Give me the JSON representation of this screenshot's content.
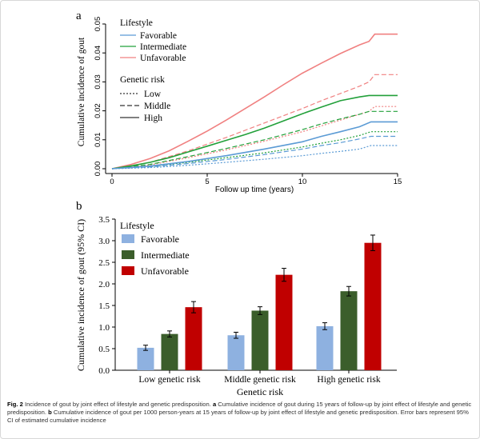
{
  "colors": {
    "favorable": "#5b9bd5",
    "intermediate": "#22a03a",
    "unfavorable": "#f08080",
    "bar_favorable": "#8eb1e0",
    "bar_intermediate": "#3b5e2b",
    "bar_unfavorable": "#c00000"
  },
  "figure": {
    "panel_a": {
      "label": "a",
      "legend": {
        "lifestyle_title": "Lifestyle",
        "lifestyle_items": [
          "Favorable",
          "Intermediate",
          "Unfavorable"
        ],
        "genetic_title": "Genetic risk",
        "genetic_items": [
          "Low",
          "Middle",
          "High"
        ]
      }
    },
    "panel_b": {
      "label": "b",
      "legend": {
        "title": "Lifestyle",
        "items": [
          "Favorable",
          "Intermediate",
          "Unfavorable"
        ]
      }
    },
    "caption": {
      "fig_label": "Fig. 2",
      "text1": " Incidence of gout by joint effect of lifestyle and genetic predisposition. ",
      "a_label": "a",
      "text2": " Cumulative incidence of gout during 15 years of follow-up by joint effect of lifestyle and genetic predisposition. ",
      "b_label": "b",
      "text3": " Cumulative incidence of gout per 1000 person-years at 15 years of follow-up by joint effect of lifestyle and genetic predisposition. Error bars represent 95% CI of estimated cumulative incidence"
    }
  },
  "chart_data": [
    {
      "type": "line",
      "xlabel": "Follow up time (years)",
      "ylabel": "Cumulative incidence of gout",
      "xlim": [
        0,
        15
      ],
      "ylim": [
        0,
        0.05
      ],
      "xticks": [
        "0",
        "5",
        "10",
        "15"
      ],
      "yticks": [
        "0.00",
        "0.01",
        "0.02",
        "0.03",
        "0.04",
        "0.05"
      ],
      "series": [
        {
          "name": "Unfavorable / High",
          "lifestyle": "Unfavorable",
          "genetic": "High",
          "x": [
            0,
            1,
            2,
            3,
            4,
            5,
            6,
            7,
            8,
            9,
            10,
            11,
            12,
            13,
            13.5,
            13.8,
            15
          ],
          "y": [
            0,
            0.0015,
            0.0035,
            0.0062,
            0.0095,
            0.013,
            0.0168,
            0.0208,
            0.0248,
            0.029,
            0.033,
            0.0365,
            0.0398,
            0.0428,
            0.044,
            0.0465,
            0.0465
          ]
        },
        {
          "name": "Unfavorable / Middle",
          "lifestyle": "Unfavorable",
          "genetic": "Middle",
          "x": [
            0,
            2,
            4,
            6,
            8,
            10,
            11,
            12,
            13,
            13.5,
            13.8,
            15
          ],
          "y": [
            0,
            0.0022,
            0.0062,
            0.0108,
            0.0158,
            0.0208,
            0.0235,
            0.026,
            0.0285,
            0.03,
            0.0325,
            0.0325
          ]
        },
        {
          "name": "Unfavorable / Low",
          "lifestyle": "Unfavorable",
          "genetic": "Low",
          "x": [
            0,
            2,
            4,
            6,
            8,
            10,
            11,
            12,
            13,
            13.5,
            13.8,
            15
          ],
          "y": [
            0,
            0.0013,
            0.0038,
            0.0065,
            0.0095,
            0.0128,
            0.0148,
            0.0168,
            0.0188,
            0.0198,
            0.0215,
            0.0215
          ]
        },
        {
          "name": "Intermediate / High",
          "lifestyle": "Intermediate",
          "genetic": "High",
          "x": [
            0,
            1,
            2,
            3,
            4,
            5,
            6,
            7,
            8,
            9,
            10,
            11,
            12,
            13,
            13.5,
            15
          ],
          "y": [
            0,
            0.001,
            0.0022,
            0.0038,
            0.0058,
            0.0078,
            0.0098,
            0.0118,
            0.014,
            0.0165,
            0.019,
            0.0213,
            0.0235,
            0.0248,
            0.0253,
            0.0253
          ]
        },
        {
          "name": "Intermediate / Middle",
          "lifestyle": "Intermediate",
          "genetic": "Middle",
          "x": [
            0,
            2,
            4,
            6,
            8,
            10,
            11,
            12,
            13,
            13.5,
            15
          ],
          "y": [
            0,
            0.0015,
            0.0042,
            0.007,
            0.01,
            0.0135,
            0.0155,
            0.0172,
            0.0188,
            0.0198,
            0.0198
          ]
        },
        {
          "name": "Intermediate / Low",
          "lifestyle": "Intermediate",
          "genetic": "Low",
          "x": [
            0,
            2,
            4,
            6,
            8,
            10,
            11,
            12,
            13,
            13.6,
            15
          ],
          "y": [
            0,
            0.0008,
            0.0022,
            0.0038,
            0.0055,
            0.0075,
            0.0088,
            0.01,
            0.0115,
            0.0128,
            0.0128
          ]
        },
        {
          "name": "Favorable / High",
          "lifestyle": "Favorable",
          "genetic": "High",
          "x": [
            0,
            2,
            4,
            6,
            8,
            10,
            11,
            12,
            13,
            13.6,
            15
          ],
          "y": [
            0,
            0.0009,
            0.0025,
            0.0045,
            0.0068,
            0.0093,
            0.0112,
            0.0128,
            0.0145,
            0.0162,
            0.0162
          ]
        },
        {
          "name": "Favorable / Middle",
          "lifestyle": "Favorable",
          "genetic": "Middle",
          "x": [
            0,
            2,
            4,
            6,
            8,
            10,
            11,
            12,
            13,
            13.6,
            15
          ],
          "y": [
            0,
            0.0006,
            0.0018,
            0.0032,
            0.0049,
            0.0068,
            0.008,
            0.009,
            0.0103,
            0.0112,
            0.0112
          ]
        },
        {
          "name": "Favorable / Low",
          "lifestyle": "Favorable",
          "genetic": "Low",
          "x": [
            0,
            2,
            4,
            6,
            8,
            10,
            11,
            12,
            13,
            13.6,
            15
          ],
          "y": [
            0,
            0.0004,
            0.0012,
            0.0022,
            0.0033,
            0.0045,
            0.0053,
            0.006,
            0.0068,
            0.008,
            0.008
          ]
        }
      ]
    },
    {
      "type": "bar",
      "xlabel": "Genetic risk",
      "ylabel": "Cumulative incidence of gout (95% CI)",
      "ylim": [
        0,
        3.5
      ],
      "yticks": [
        "0.0",
        "0.5",
        "1.0",
        "1.5",
        "2.0",
        "2.5",
        "3.0",
        "3.5"
      ],
      "categories": [
        "Low genetic risk",
        "Middle genetic risk",
        "High genetic risk"
      ],
      "series": [
        {
          "name": "Favorable",
          "values": [
            0.52,
            0.81,
            1.02
          ],
          "ci_low": [
            0.46,
            0.74,
            0.94
          ],
          "ci_high": [
            0.58,
            0.88,
            1.1
          ]
        },
        {
          "name": "Intermediate",
          "values": [
            0.84,
            1.38,
            1.83
          ],
          "ci_low": [
            0.77,
            1.29,
            1.72
          ],
          "ci_high": [
            0.91,
            1.47,
            1.94
          ]
        },
        {
          "name": "Unfavorable",
          "values": [
            1.46,
            2.21,
            2.95
          ],
          "ci_low": [
            1.33,
            2.06,
            2.77
          ],
          "ci_high": [
            1.59,
            2.36,
            3.13
          ]
        }
      ]
    }
  ]
}
